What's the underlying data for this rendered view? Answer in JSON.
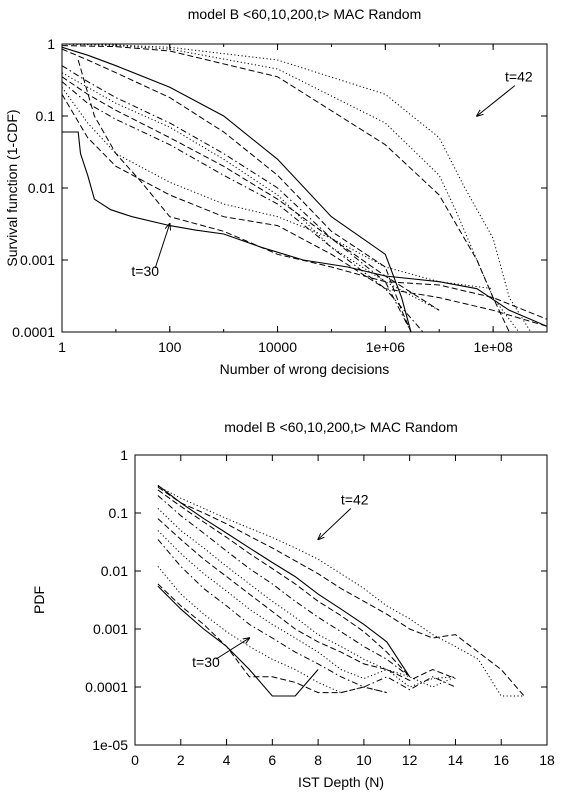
{
  "chart_data": [
    {
      "type": "line",
      "title": "model B <60,10,200,t> MAC Random",
      "xlabel": "Number of wrong decisions",
      "ylabel": "Survival function (1-CDF)",
      "xscale": "log",
      "yscale": "log",
      "xlim": [
        1,
        1000000000
      ],
      "ylim": [
        0.0001,
        1
      ],
      "xticks": [
        1,
        100,
        10000,
        1000000,
        100000000
      ],
      "xtick_labels": [
        "1",
        "100",
        "10000",
        "1e+06",
        "1e+08"
      ],
      "yticks": [
        1,
        0.1,
        0.01,
        0.001,
        0.0001
      ],
      "ytick_labels": [
        "1",
        "0.1",
        "0.01",
        "0.001",
        "0.0001"
      ],
      "grid": false,
      "legend": "none",
      "annotations": [
        {
          "text": "t=42",
          "point": [
            50000000,
            0.1
          ],
          "text_at": [
            300000000,
            0.3
          ]
        },
        {
          "text": "t=30",
          "point": [
            100,
            0.0032
          ],
          "text_at": [
            35,
            0.0006
          ]
        }
      ],
      "series": [
        {
          "style": "solid",
          "x": [
            1,
            2,
            2.2,
            3,
            4,
            8,
            20,
            100,
            300,
            1000,
            5000,
            30000,
            200000,
            1000000,
            10000000,
            50000000,
            200000000,
            1000000000
          ],
          "y": [
            0.06,
            0.06,
            0.03,
            0.015,
            0.007,
            0.005,
            0.004,
            0.003,
            0.0026,
            0.0023,
            0.0015,
            0.001,
            0.0008,
            0.0006,
            0.0005,
            0.0004,
            0.0002,
            0.00012
          ]
        },
        {
          "style": "dashed",
          "x": [
            2,
            4,
            10,
            30,
            100,
            1000,
            10000,
            100000,
            1000000,
            10000000,
            100000000,
            1000000000
          ],
          "y": [
            0.6,
            0.1,
            0.03,
            0.012,
            0.004,
            0.0025,
            0.0012,
            0.0008,
            0.0005,
            0.00045,
            0.0003,
            0.00015
          ]
        },
        {
          "style": "solid",
          "x": [
            1,
            3,
            10,
            100,
            1000,
            10000,
            100000,
            1000000,
            2000000,
            3000000
          ],
          "y": [
            0.9,
            0.7,
            0.5,
            0.25,
            0.1,
            0.025,
            0.004,
            0.0012,
            0.0003,
            0.0001
          ]
        },
        {
          "style": "dashed",
          "x": [
            1,
            3,
            10,
            100,
            1000,
            10000,
            100000,
            1000000,
            2000000,
            3000000
          ],
          "y": [
            0.85,
            0.6,
            0.4,
            0.18,
            0.06,
            0.015,
            0.0025,
            0.0008,
            0.0002,
            0.0001
          ]
        },
        {
          "style": "dotted",
          "x": [
            1,
            10,
            100,
            10000,
            1000000,
            10000000,
            30000000,
            100000000,
            200000000,
            500000000
          ],
          "y": [
            1,
            0.97,
            0.9,
            0.6,
            0.2,
            0.05,
            0.01,
            0.002,
            0.0003,
            0.0001
          ]
        },
        {
          "style": "dotted",
          "x": [
            1,
            10,
            100,
            10000,
            1000000,
            10000000,
            20000000,
            50000000,
            100000000,
            300000000
          ],
          "y": [
            1,
            0.95,
            0.85,
            0.45,
            0.08,
            0.015,
            0.005,
            0.001,
            0.0003,
            0.0001
          ]
        },
        {
          "style": "dashed",
          "x": [
            1,
            10,
            100,
            10000,
            1000000,
            10000000,
            50000000,
            100000000,
            200000000
          ],
          "y": [
            0.95,
            0.92,
            0.8,
            0.35,
            0.04,
            0.008,
            0.001,
            0.0003,
            0.0001
          ]
        },
        {
          "style": "dash-dot",
          "x": [
            1,
            3,
            10,
            100,
            1000,
            10000,
            100000,
            1000000,
            3000000
          ],
          "y": [
            0.5,
            0.3,
            0.18,
            0.08,
            0.03,
            0.01,
            0.002,
            0.0005,
            0.0001
          ]
        },
        {
          "style": "dotted",
          "x": [
            1,
            3,
            10,
            100,
            1000,
            10000,
            100000,
            1000000,
            10000000
          ],
          "y": [
            0.4,
            0.25,
            0.15,
            0.07,
            0.025,
            0.008,
            0.0015,
            0.0005,
            0.0002
          ]
        },
        {
          "style": "dashed",
          "x": [
            1,
            3,
            10,
            100,
            1000,
            10000,
            100000,
            1000000,
            10000000
          ],
          "y": [
            0.35,
            0.2,
            0.12,
            0.05,
            0.02,
            0.007,
            0.002,
            0.0006,
            0.0002
          ]
        },
        {
          "style": "dash-dot",
          "x": [
            1,
            3,
            10,
            100,
            1000,
            10000,
            100000,
            1000000,
            5000000
          ],
          "y": [
            0.3,
            0.15,
            0.09,
            0.04,
            0.015,
            0.006,
            0.0015,
            0.0004,
            0.0001
          ]
        },
        {
          "style": "dotted",
          "x": [
            1,
            3,
            10,
            100,
            1000,
            10000,
            100000,
            1000000,
            10000000,
            100000000
          ],
          "y": [
            0.25,
            0.08,
            0.03,
            0.012,
            0.006,
            0.004,
            0.002,
            0.0008,
            0.0005,
            0.0004
          ]
        },
        {
          "style": "dashed",
          "x": [
            1,
            3,
            10,
            100,
            1000,
            10000,
            100000,
            1000000,
            10000000,
            100000000,
            1000000000
          ],
          "y": [
            0.2,
            0.05,
            0.02,
            0.008,
            0.004,
            0.003,
            0.0012,
            0.0004,
            0.0003,
            0.0002,
            0.00012
          ]
        }
      ]
    },
    {
      "type": "line",
      "title": "model B <60,10,200,t> MAC Random",
      "xlabel": "IST Depth (N)",
      "ylabel": "PDF",
      "xscale": "linear",
      "yscale": "log",
      "xlim": [
        0,
        18
      ],
      "ylim": [
        1e-05,
        1
      ],
      "xticks": [
        0,
        2,
        4,
        6,
        8,
        10,
        12,
        14,
        16,
        18
      ],
      "xtick_labels": [
        "0",
        "2",
        "4",
        "6",
        "8",
        "10",
        "12",
        "14",
        "16",
        "18"
      ],
      "yticks": [
        1,
        0.1,
        0.01,
        0.001,
        0.0001,
        1e-05
      ],
      "ytick_labels": [
        "1",
        "0.1",
        "0.01",
        "0.001",
        "0.0001",
        "1e-05"
      ],
      "grid": false,
      "legend": "none",
      "annotations": [
        {
          "text": "t=42",
          "point": [
            8,
            0.035
          ],
          "text_at": [
            9.6,
            0.14
          ]
        },
        {
          "text": "t=30",
          "point": [
            5,
            0.0007
          ],
          "text_at": [
            3.1,
            0.00022
          ]
        }
      ],
      "series": [
        {
          "style": "dotted",
          "x": [
            1,
            2,
            3,
            4,
            5,
            6,
            7,
            8,
            9,
            10,
            11,
            12,
            13,
            14,
            15,
            16,
            16.5,
            17
          ],
          "y": [
            0.29,
            0.18,
            0.12,
            0.08,
            0.055,
            0.038,
            0.025,
            0.016,
            0.009,
            0.005,
            0.0025,
            0.0015,
            0.0008,
            0.0005,
            0.0003,
            7e-05,
            7e-05,
            7e-05
          ]
        },
        {
          "style": "dashed",
          "x": [
            1,
            2,
            3,
            4,
            5,
            6,
            7,
            8,
            9,
            10,
            11,
            12,
            13,
            14,
            15,
            16,
            17
          ],
          "y": [
            0.28,
            0.15,
            0.1,
            0.065,
            0.04,
            0.025,
            0.015,
            0.009,
            0.005,
            0.003,
            0.0018,
            0.001,
            0.0007,
            0.0008,
            0.0004,
            0.0002,
            7e-05
          ]
        },
        {
          "style": "solid",
          "x": [
            1,
            2,
            3,
            4,
            5,
            6,
            7,
            8,
            9,
            10,
            11,
            12
          ],
          "y": [
            0.3,
            0.15,
            0.08,
            0.045,
            0.025,
            0.014,
            0.008,
            0.004,
            0.0022,
            0.0012,
            0.0006,
            0.00015
          ]
        },
        {
          "style": "dashed",
          "x": [
            1,
            2,
            3,
            4,
            5,
            6,
            7,
            8,
            9,
            10,
            11,
            12
          ],
          "y": [
            0.25,
            0.13,
            0.07,
            0.038,
            0.02,
            0.011,
            0.006,
            0.003,
            0.0017,
            0.0009,
            0.0004,
            0.00015
          ]
        },
        {
          "style": "dash-dot",
          "x": [
            1,
            2,
            3,
            4,
            5,
            6,
            7,
            8,
            9,
            10,
            11,
            12
          ],
          "y": [
            0.2,
            0.09,
            0.045,
            0.022,
            0.011,
            0.006,
            0.003,
            0.0016,
            0.0009,
            0.0005,
            0.0003,
            0.00015
          ]
        },
        {
          "style": "dotted",
          "x": [
            1,
            2,
            3,
            4,
            5,
            6,
            7,
            8,
            9,
            10,
            11,
            12,
            13,
            14
          ],
          "y": [
            0.12,
            0.05,
            0.025,
            0.012,
            0.006,
            0.003,
            0.0016,
            0.0008,
            0.0005,
            0.0003,
            0.0002,
            0.00015,
            0.0001,
            0.00015
          ]
        },
        {
          "style": "dashed",
          "x": [
            1,
            2,
            3,
            4,
            5,
            6,
            7,
            8,
            9,
            10,
            11,
            12,
            13,
            14
          ],
          "y": [
            0.08,
            0.035,
            0.016,
            0.008,
            0.004,
            0.002,
            0.001,
            0.0006,
            0.0004,
            0.00025,
            0.0002,
            0.00013,
            0.0002,
            0.00014
          ]
        },
        {
          "style": "dotted",
          "x": [
            1,
            2,
            3,
            4,
            5,
            6,
            7,
            8,
            9,
            10,
            11,
            12,
            13,
            14
          ],
          "y": [
            0.05,
            0.02,
            0.009,
            0.0045,
            0.0022,
            0.0012,
            0.0007,
            0.0004,
            0.0002,
            0.00014,
            0.0002,
            0.0001,
            0.00014,
            0.00015
          ]
        },
        {
          "style": "dash-dot",
          "x": [
            1,
            2,
            3,
            4,
            5,
            6,
            7,
            8,
            9,
            10,
            11,
            12,
            13,
            14
          ],
          "y": [
            0.035,
            0.012,
            0.005,
            0.0025,
            0.0012,
            0.0007,
            0.0004,
            0.00025,
            0.00015,
            0.0001,
            0.00015,
            9e-05,
            0.00015,
            0.0001
          ]
        },
        {
          "style": "dotted",
          "x": [
            1,
            2,
            3,
            4,
            5,
            6,
            7,
            8,
            9,
            10,
            11
          ],
          "y": [
            0.012,
            0.004,
            0.0018,
            0.0009,
            0.0005,
            0.0003,
            0.0002,
            0.00012,
            8e-05,
            0.0001,
            8e-05
          ]
        },
        {
          "style": "dashed",
          "x": [
            1,
            2,
            3,
            4,
            5,
            6,
            7,
            8,
            9,
            10,
            11
          ],
          "y": [
            0.006,
            0.0025,
            0.0012,
            0.0005,
            0.00015,
            0.00015,
            0.00012,
            8e-05,
            8e-05,
            0.0001,
            8e-05
          ]
        },
        {
          "style": "solid",
          "x": [
            1,
            2,
            3,
            4,
            5,
            6,
            7,
            8
          ],
          "y": [
            0.0055,
            0.0022,
            0.001,
            0.0005,
            0.0002,
            7e-05,
            7e-05,
            0.0002
          ]
        }
      ]
    }
  ]
}
